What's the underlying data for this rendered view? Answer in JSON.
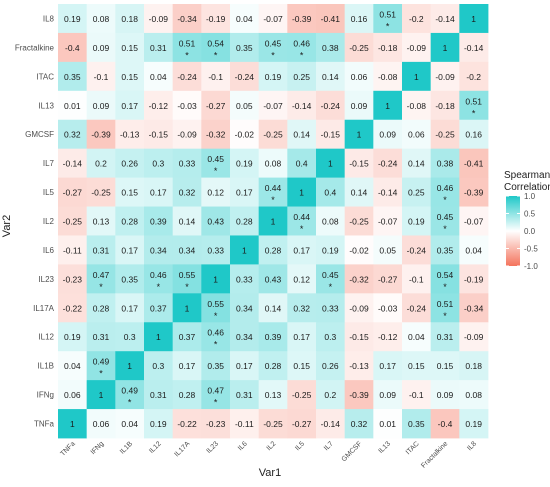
{
  "chart_data": {
    "type": "heatmap",
    "xlabel": "Var1",
    "ylabel": "Var2",
    "legend": {
      "title": [
        "Spearman",
        "Correlation"
      ],
      "ticks": [
        1.0,
        0.5,
        0.0,
        -0.5,
        -1.0
      ],
      "tick_labels": [
        "1.0",
        "0.5",
        "0.0",
        "-0.5",
        "-1.0"
      ],
      "colors": {
        "low": "#f4735c",
        "mid": "#ffffff",
        "high": "#1fc8c8"
      },
      "range": [
        -1,
        1
      ],
      "position": "right"
    },
    "x_categories": [
      "TNFa",
      "IFNg",
      "IL1B",
      "IL12",
      "IL17A",
      "IL23",
      "IL6",
      "IL2",
      "IL5",
      "IL7",
      "GMCSF",
      "IL13",
      "ITAC",
      "Fractalkine",
      "IL8"
    ],
    "y_categories": [
      "IL8",
      "Fractalkine",
      "ITAC",
      "IL13",
      "GMCSF",
      "IL7",
      "IL5",
      "IL2",
      "IL6",
      "IL23",
      "IL17A",
      "IL12",
      "IL1B",
      "IFNg",
      "TNFa"
    ],
    "values": [
      [
        "0.19",
        "0.08",
        "0.18",
        "-0.09",
        "-0.34",
        "-0.19",
        "0.04",
        "-0.07",
        "-0.39",
        "-0.41",
        "0.16",
        "0.51",
        "-0.2",
        "-0.14",
        "1"
      ],
      [
        "-0.4",
        "0.09",
        "0.15",
        "0.31",
        "0.51",
        "0.54",
        "0.35",
        "0.45",
        "0.46",
        "0.38",
        "-0.25",
        "-0.18",
        "-0.09",
        "1",
        "-0.14"
      ],
      [
        "0.35",
        "-0.1",
        "0.15",
        "0.04",
        "-0.24",
        "-0.1",
        "-0.24",
        "0.19",
        "0.25",
        "0.14",
        "0.06",
        "-0.08",
        "1",
        "-0.09",
        "-0.2"
      ],
      [
        "0.01",
        "0.09",
        "0.17",
        "-0.12",
        "-0.03",
        "-0.27",
        "0.05",
        "-0.07",
        "-0.14",
        "-0.24",
        "0.09",
        "1",
        "-0.08",
        "-0.18",
        "0.51"
      ],
      [
        "0.32",
        "-0.39",
        "-0.13",
        "-0.15",
        "-0.09",
        "-0.32",
        "-0.02",
        "-0.25",
        "0.14",
        "-0.15",
        "1",
        "0.09",
        "0.06",
        "-0.25",
        "0.16"
      ],
      [
        "-0.14",
        "0.2",
        "0.26",
        "0.3",
        "0.33",
        "0.45",
        "0.19",
        "0.08",
        "0.4",
        "1",
        "-0.15",
        "-0.24",
        "0.14",
        "0.38",
        "-0.41"
      ],
      [
        "-0.27",
        "-0.25",
        "0.15",
        "0.17",
        "0.32",
        "0.12",
        "0.17",
        "0.44",
        "1",
        "0.4",
        "0.14",
        "-0.14",
        "0.25",
        "0.46",
        "-0.39"
      ],
      [
        "-0.25",
        "0.13",
        "0.28",
        "0.39",
        "0.14",
        "0.43",
        "0.28",
        "1",
        "0.44",
        "0.08",
        "-0.25",
        "-0.07",
        "0.19",
        "0.45",
        "-0.07"
      ],
      [
        "-0.11",
        "0.31",
        "0.17",
        "0.34",
        "0.34",
        "0.33",
        "1",
        "0.28",
        "0.17",
        "0.19",
        "-0.02",
        "0.05",
        "-0.24",
        "0.35",
        "0.04"
      ],
      [
        "-0.23",
        "0.47",
        "0.35",
        "0.46",
        "0.55",
        "1",
        "0.33",
        "0.43",
        "0.12",
        "0.45",
        "-0.32",
        "-0.27",
        "-0.1",
        "0.54",
        "-0.19"
      ],
      [
        "-0.22",
        "0.28",
        "0.17",
        "0.37",
        "1",
        "0.55",
        "0.34",
        "0.14",
        "0.32",
        "0.33",
        "-0.09",
        "-0.03",
        "-0.24",
        "0.51",
        "-0.34"
      ],
      [
        "0.19",
        "0.31",
        "0.3",
        "1",
        "0.37",
        "0.46",
        "0.34",
        "0.39",
        "0.17",
        "0.3",
        "-0.15",
        "-0.12",
        "0.04",
        "0.31",
        "-0.09"
      ],
      [
        "0.04",
        "0.49",
        "1",
        "0.3",
        "0.17",
        "0.35",
        "0.17",
        "0.28",
        "0.15",
        "0.26",
        "-0.13",
        "0.17",
        "0.15",
        "0.15",
        "0.18"
      ],
      [
        "0.06",
        "1",
        "0.49",
        "0.31",
        "0.28",
        "0.47",
        "0.31",
        "0.13",
        "-0.25",
        "0.2",
        "-0.39",
        "0.09",
        "-0.1",
        "0.09",
        "0.08"
      ],
      [
        "1",
        "0.06",
        "0.04",
        "0.19",
        "-0.22",
        "-0.23",
        "-0.11",
        "-0.25",
        "-0.27",
        "-0.14",
        "0.32",
        "0.01",
        "0.35",
        "-0.4",
        "0.19"
      ]
    ],
    "significance_marker": "*",
    "significant_cells": [
      [
        "IL8",
        "IL13"
      ],
      [
        "IL13",
        "IL8"
      ],
      [
        "Fractalkine",
        "IL17A"
      ],
      [
        "Fractalkine",
        "IL23"
      ],
      [
        "Fractalkine",
        "IL2"
      ],
      [
        "Fractalkine",
        "IL5"
      ],
      [
        "IL5",
        "IL2"
      ],
      [
        "IL5",
        "Fractalkine"
      ],
      [
        "IL2",
        "IL5"
      ],
      [
        "IL2",
        "Fractalkine"
      ],
      [
        "IL23",
        "IFNg"
      ],
      [
        "IL23",
        "IL12"
      ],
      [
        "IL23",
        "IL17A"
      ],
      [
        "IL23",
        "IL7"
      ],
      [
        "IL23",
        "Fractalkine"
      ],
      [
        "IL17A",
        "IL23"
      ],
      [
        "IL17A",
        "Fractalkine"
      ],
      [
        "IL12",
        "IL23"
      ],
      [
        "IL1B",
        "IFNg"
      ],
      [
        "IFNg",
        "IL1B"
      ],
      [
        "IFNg",
        "IL23"
      ],
      [
        "IL7",
        "IL23"
      ]
    ],
    "grid": false
  }
}
